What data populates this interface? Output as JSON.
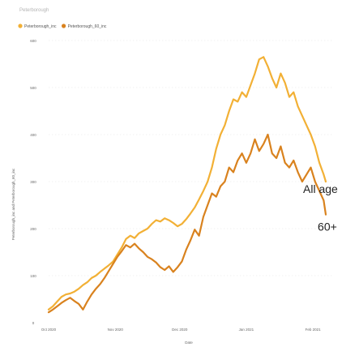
{
  "chart_data": {
    "type": "line",
    "title": "Peterborough",
    "xlabel": "Date",
    "ylabel": "Peterborough_inc and Peterborough_60_inc",
    "ylim": [
      0,
      600
    ],
    "yticks": [
      0,
      100,
      200,
      300,
      400,
      500,
      600
    ],
    "xlim": [
      "2020-10-01",
      "2021-02-10"
    ],
    "xticks": [
      {
        "date": "2020-10-01",
        "label": "Oct 2020"
      },
      {
        "date": "2020-11-01",
        "label": "Nov 2020"
      },
      {
        "date": "2020-12-01",
        "label": "Dec 2020"
      },
      {
        "date": "2021-01-01",
        "label": "Jan 2021"
      },
      {
        "date": "2021-02-01",
        "label": "Feb 2021"
      }
    ],
    "grid": true,
    "legend": "top-left",
    "annotations": [
      {
        "text": "All age",
        "series": "Peterborough_inc"
      },
      {
        "text": "60+",
        "series": "Peterborough_60_inc"
      }
    ],
    "series": [
      {
        "name": "Peterborough_inc",
        "color": "#f2b035",
        "points": [
          [
            "2020-10-01",
            28
          ],
          [
            "2020-10-03",
            35
          ],
          [
            "2020-10-05",
            45
          ],
          [
            "2020-10-07",
            55
          ],
          [
            "2020-10-09",
            60
          ],
          [
            "2020-10-11",
            62
          ],
          [
            "2020-10-13",
            66
          ],
          [
            "2020-10-15",
            72
          ],
          [
            "2020-10-17",
            80
          ],
          [
            "2020-10-19",
            86
          ],
          [
            "2020-10-21",
            95
          ],
          [
            "2020-10-23",
            100
          ],
          [
            "2020-10-25",
            108
          ],
          [
            "2020-10-27",
            115
          ],
          [
            "2020-10-29",
            122
          ],
          [
            "2020-10-31",
            130
          ],
          [
            "2020-11-02",
            145
          ],
          [
            "2020-11-04",
            160
          ],
          [
            "2020-11-06",
            178
          ],
          [
            "2020-11-08",
            185
          ],
          [
            "2020-11-10",
            180
          ],
          [
            "2020-11-12",
            190
          ],
          [
            "2020-11-14",
            195
          ],
          [
            "2020-11-16",
            200
          ],
          [
            "2020-11-18",
            210
          ],
          [
            "2020-11-20",
            218
          ],
          [
            "2020-11-22",
            215
          ],
          [
            "2020-11-24",
            222
          ],
          [
            "2020-11-26",
            218
          ],
          [
            "2020-11-28",
            212
          ],
          [
            "2020-11-30",
            205
          ],
          [
            "2020-12-02",
            210
          ],
          [
            "2020-12-04",
            220
          ],
          [
            "2020-12-06",
            232
          ],
          [
            "2020-12-08",
            245
          ],
          [
            "2020-12-10",
            262
          ],
          [
            "2020-12-12",
            280
          ],
          [
            "2020-12-14",
            300
          ],
          [
            "2020-12-16",
            330
          ],
          [
            "2020-12-18",
            370
          ],
          [
            "2020-12-20",
            400
          ],
          [
            "2020-12-22",
            420
          ],
          [
            "2020-12-24",
            450
          ],
          [
            "2020-12-26",
            475
          ],
          [
            "2020-12-28",
            470
          ],
          [
            "2020-12-30",
            490
          ],
          [
            "2021-01-01",
            480
          ],
          [
            "2021-01-03",
            505
          ],
          [
            "2021-01-05",
            530
          ],
          [
            "2021-01-07",
            560
          ],
          [
            "2021-01-09",
            565
          ],
          [
            "2021-01-11",
            545
          ],
          [
            "2021-01-13",
            520
          ],
          [
            "2021-01-15",
            500
          ],
          [
            "2021-01-17",
            530
          ],
          [
            "2021-01-19",
            510
          ],
          [
            "2021-01-21",
            480
          ],
          [
            "2021-01-23",
            490
          ],
          [
            "2021-01-25",
            460
          ],
          [
            "2021-01-27",
            440
          ],
          [
            "2021-01-29",
            420
          ],
          [
            "2021-01-31",
            400
          ],
          [
            "2021-02-02",
            375
          ],
          [
            "2021-02-04",
            340
          ],
          [
            "2021-02-06",
            315
          ],
          [
            "2021-02-07",
            300
          ]
        ]
      },
      {
        "name": "Peterborough_60_inc",
        "color": "#d9821e",
        "points": [
          [
            "2020-10-01",
            22
          ],
          [
            "2020-10-03",
            28
          ],
          [
            "2020-10-05",
            35
          ],
          [
            "2020-10-07",
            42
          ],
          [
            "2020-10-09",
            48
          ],
          [
            "2020-10-11",
            53
          ],
          [
            "2020-10-13",
            46
          ],
          [
            "2020-10-15",
            40
          ],
          [
            "2020-10-17",
            28
          ],
          [
            "2020-10-19",
            45
          ],
          [
            "2020-10-21",
            60
          ],
          [
            "2020-10-23",
            72
          ],
          [
            "2020-10-25",
            82
          ],
          [
            "2020-10-27",
            95
          ],
          [
            "2020-10-29",
            110
          ],
          [
            "2020-10-31",
            125
          ],
          [
            "2020-11-02",
            140
          ],
          [
            "2020-11-04",
            152
          ],
          [
            "2020-11-06",
            165
          ],
          [
            "2020-11-08",
            160
          ],
          [
            "2020-11-10",
            168
          ],
          [
            "2020-11-12",
            158
          ],
          [
            "2020-11-14",
            150
          ],
          [
            "2020-11-16",
            140
          ],
          [
            "2020-11-18",
            135
          ],
          [
            "2020-11-20",
            128
          ],
          [
            "2020-11-22",
            118
          ],
          [
            "2020-11-24",
            112
          ],
          [
            "2020-11-26",
            120
          ],
          [
            "2020-11-28",
            108
          ],
          [
            "2020-11-30",
            118
          ],
          [
            "2020-12-02",
            130
          ],
          [
            "2020-12-04",
            155
          ],
          [
            "2020-12-06",
            175
          ],
          [
            "2020-12-08",
            198
          ],
          [
            "2020-12-10",
            185
          ],
          [
            "2020-12-12",
            225
          ],
          [
            "2020-12-14",
            250
          ],
          [
            "2020-12-16",
            275
          ],
          [
            "2020-12-18",
            268
          ],
          [
            "2020-12-20",
            290
          ],
          [
            "2020-12-22",
            300
          ],
          [
            "2020-12-24",
            330
          ],
          [
            "2020-12-26",
            320
          ],
          [
            "2020-12-28",
            345
          ],
          [
            "2020-12-30",
            360
          ],
          [
            "2021-01-01",
            340
          ],
          [
            "2021-01-03",
            360
          ],
          [
            "2021-01-05",
            390
          ],
          [
            "2021-01-07",
            365
          ],
          [
            "2021-01-09",
            380
          ],
          [
            "2021-01-11",
            400
          ],
          [
            "2021-01-13",
            360
          ],
          [
            "2021-01-15",
            350
          ],
          [
            "2021-01-17",
            375
          ],
          [
            "2021-01-19",
            340
          ],
          [
            "2021-01-21",
            330
          ],
          [
            "2021-01-23",
            345
          ],
          [
            "2021-01-25",
            320
          ],
          [
            "2021-01-27",
            300
          ],
          [
            "2021-01-29",
            315
          ],
          [
            "2021-01-31",
            330
          ],
          [
            "2021-02-02",
            300
          ],
          [
            "2021-02-04",
            280
          ],
          [
            "2021-02-06",
            260
          ],
          [
            "2021-02-07",
            230
          ]
        ]
      }
    ]
  }
}
